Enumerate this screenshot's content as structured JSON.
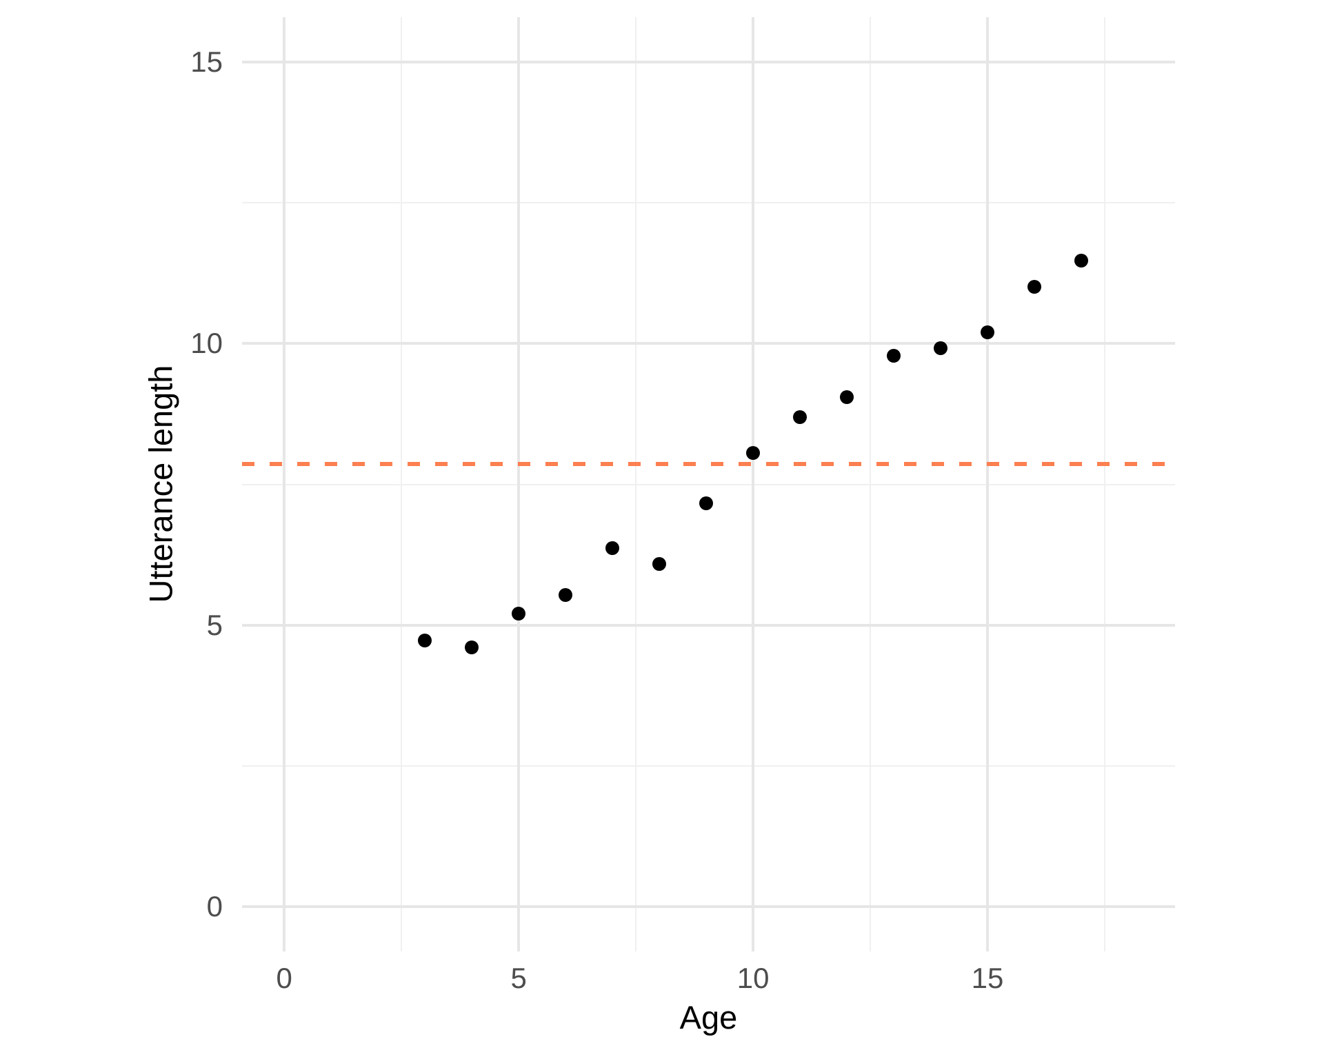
{
  "chart_data": {
    "type": "scatter",
    "title": "",
    "xlabel": "Age",
    "ylabel": "Utterance length",
    "x": [
      3,
      4,
      5,
      6,
      7,
      8,
      9,
      10,
      11,
      12,
      13,
      14,
      15,
      16,
      17
    ],
    "y": [
      4.73,
      4.6,
      5.2,
      5.53,
      6.37,
      6.09,
      7.16,
      8.06,
      8.7,
      9.05,
      9.79,
      9.92,
      10.2,
      11.01,
      11.47
    ],
    "x_ticks": {
      "values": [
        0,
        5,
        10,
        15
      ],
      "labels": [
        "0",
        "5",
        "10",
        "15"
      ]
    },
    "y_ticks": {
      "values": [
        0,
        5,
        10,
        15
      ],
      "labels": [
        "0",
        "5",
        "10",
        "15"
      ]
    },
    "x_minor_gridlines": [
      2.5,
      7.5,
      12.5,
      17.5
    ],
    "y_minor_gridlines": [
      2.5,
      7.5,
      12.5
    ],
    "xlim": [
      -0.9,
      19.0
    ],
    "ylim": [
      -0.8,
      15.8
    ],
    "grid": true,
    "legend_position": "none",
    "reference_line": {
      "orientation": "horizontal",
      "y": 7.86,
      "linetype": "dashed",
      "color": "#FC7F50"
    },
    "point_color": "#000000"
  },
  "style": {
    "background_color": "#FFFFFF",
    "grid_major_color": "#E6E6E6",
    "grid_minor_color": "#F0F0F0",
    "tick_label_color": "#4D4D4D",
    "axis_title_color": "#000000",
    "point_color": "#000000",
    "reference_line_color": "#FC7F50"
  }
}
